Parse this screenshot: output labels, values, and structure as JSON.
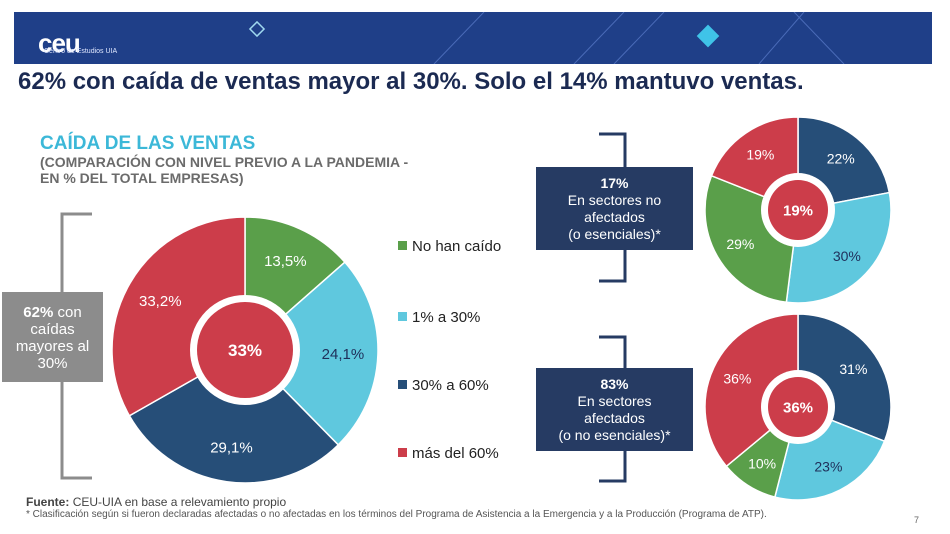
{
  "header": {
    "logo_text": "ceu",
    "logo_sub": "Centro de Estudios UIA",
    "headline": "62% con caída de ventas mayor al 30%. Solo el 14% mantuvo ventas."
  },
  "left_panel": {
    "title": "CAÍDA DE LAS VENTAS",
    "subtitle": "(COMPARACIÓN CON NIVEL PREVIO A LA PANDEMIA - EN % DEL TOTAL EMPRESAS)",
    "bracket_box": {
      "pct": "62%",
      "rest": "con caídas mayores al 30%"
    }
  },
  "right_panel": {
    "box_top": {
      "pct": "17%",
      "line1": "En sectores no",
      "line2": "afectados",
      "line3": "(o esenciales)*"
    },
    "box_bottom": {
      "pct": "83%",
      "line1": "En sectores",
      "line2": "afectados",
      "line3": "(o no esenciales)*"
    }
  },
  "colors": {
    "no_han_caido": "#5a9f4a",
    "uno_a_30": "#5fc8de",
    "treinta_a_60": "#264e78",
    "mas_60": "#cc3d4a",
    "banner": "#1f3f88"
  },
  "chart_data": [
    {
      "type": "pie",
      "title": "CAÍDA DE LAS VENTAS",
      "categories": [
        "No han caído",
        "1% a 30%",
        "30% a 60%",
        "más del 60%"
      ],
      "values": [
        13.5,
        24.1,
        29.1,
        33.2
      ],
      "labels": [
        "13,5%",
        "24,1%",
        "29,1%",
        "33,2%"
      ],
      "center_label": "33%",
      "legend": "right"
    },
    {
      "type": "pie",
      "title": "En sectores no afectados (o esenciales)*",
      "categories": [
        "No han caído",
        "1% a 30%",
        "30% a 60%",
        "más del 60%"
      ],
      "values": [
        29,
        30,
        22,
        19
      ],
      "labels": [
        "29%",
        "30%",
        "22%",
        "19%"
      ],
      "center_label": "19%"
    },
    {
      "type": "pie",
      "title": "En sectores afectados (o no esenciales)*",
      "categories": [
        "No han caído",
        "1% a 30%",
        "30% a 60%",
        "más del 60%"
      ],
      "values": [
        10,
        23,
        31,
        36
      ],
      "labels": [
        "10%",
        "23%",
        "31%",
        "36%"
      ],
      "center_label": "36%"
    }
  ],
  "legend": [
    {
      "label": "No han caído"
    },
    {
      "label": "1% a 30%"
    },
    {
      "label": "30% a 60%"
    },
    {
      "label": "más del 60%"
    }
  ],
  "footer": {
    "source_label": "Fuente:",
    "source_text": "CEU-UIA en base a relevamiento propio",
    "note": "* Clasificación según si fueron declaradas afectadas o no afectadas en los términos del Programa de Asistencia a la Emergencia y a la Producción (Programa de ATP).",
    "page": "7"
  }
}
